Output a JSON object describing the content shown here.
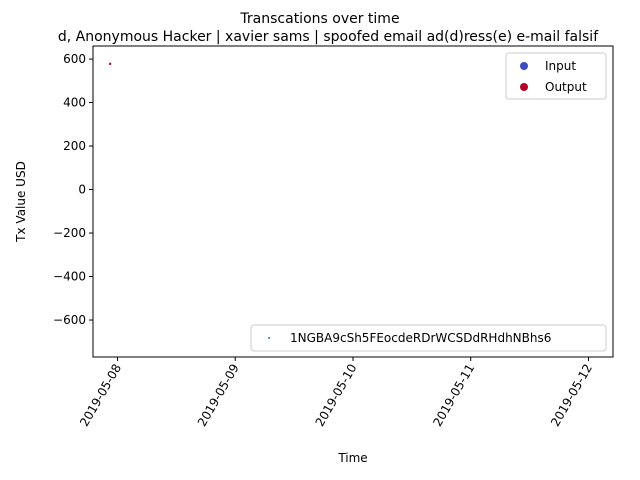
{
  "figure": {
    "suptitle": "Transcations over time",
    "title": "d, Anonymous Hacker | xavier sams | spoofed email ad(d)ress(e) e-mail falsif"
  },
  "chart_data": {
    "type": "scatter",
    "xlabel": "Time",
    "ylabel": "Tx Value USD",
    "x_is_date": true,
    "xlim": [
      "2019-05-07T19:00",
      "2019-05-12T05:00"
    ],
    "ylim": [
      -770,
      660
    ],
    "xticks": [
      "2019-05-08",
      "2019-05-09",
      "2019-05-10",
      "2019-05-11",
      "2019-05-12"
    ],
    "yticks": [
      600,
      400,
      200,
      0,
      -200,
      -400,
      -600
    ],
    "ytick_labels": [
      "600",
      "400",
      "200",
      "0",
      "−200",
      "−400",
      "−600"
    ],
    "grid": false,
    "series": [
      {
        "name": "Output",
        "color": "#b40426",
        "points": [
          {
            "x": "2019-05-07T22:30",
            "y": 578
          }
        ]
      }
    ],
    "legends": [
      {
        "placement": "upper right",
        "entries": [
          {
            "label": "Input",
            "color": "#3b4cc0",
            "marker": "circle"
          },
          {
            "label": "Output",
            "color": "#b40426",
            "marker": "circle"
          }
        ]
      },
      {
        "placement": "lower right",
        "entries": [
          {
            "label": "1NGBA9cSh5FEocdeRDrWCSDdRHdhNBhs6",
            "color": "#1f77b4",
            "marker": "point"
          }
        ]
      }
    ]
  }
}
